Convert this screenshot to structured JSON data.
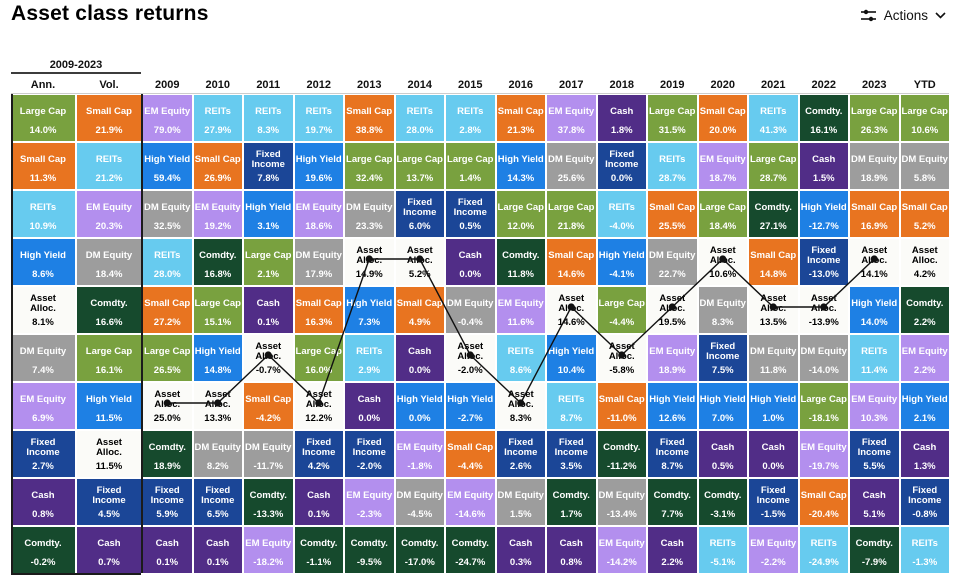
{
  "header": {
    "title": "Asset class returns",
    "actions_label": "Actions"
  },
  "asset_colors": {
    "Large Cap": "#79a13f",
    "Small Cap": "#e87420",
    "REITs": "#67cbef",
    "High Yield": "#1e80e4",
    "Asset Alloc.": "#fbfbf8",
    "DM Equity": "#9d9d9d",
    "EM Equity": "#b38fee",
    "Fixed Income": "#1b4697",
    "Cash": "#512d87",
    "Comdty.": "#164a2d"
  },
  "line_overlay": {
    "tracked_asset": "Asset Alloc.",
    "color": "#111111",
    "tracked_columns": [
      "2009",
      "2010",
      "2011",
      "2012",
      "2013",
      "2014",
      "2015",
      "2016",
      "2017",
      "2018",
      "2019",
      "2020",
      "2021",
      "2022",
      "2023"
    ]
  },
  "chart_data": {
    "type": "table",
    "title": "Asset class returns",
    "group_header": "2009-2023",
    "columns": [
      {
        "label": "Ann.",
        "cells": [
          {
            "asset": "Large Cap",
            "value": "14.0%"
          },
          {
            "asset": "Small Cap",
            "value": "11.3%"
          },
          {
            "asset": "REITs",
            "value": "10.9%"
          },
          {
            "asset": "High Yield",
            "value": "8.6%"
          },
          {
            "asset": "Asset Alloc.",
            "value": "8.1%"
          },
          {
            "asset": "DM Equity",
            "value": "7.4%"
          },
          {
            "asset": "EM Equity",
            "value": "6.9%"
          },
          {
            "asset": "Fixed Income",
            "value": "2.7%"
          },
          {
            "asset": "Cash",
            "value": "0.8%"
          },
          {
            "asset": "Comdty.",
            "value": "-0.2%"
          }
        ]
      },
      {
        "label": "Vol.",
        "cells": [
          {
            "asset": "Small Cap",
            "value": "21.9%"
          },
          {
            "asset": "REITs",
            "value": "21.2%"
          },
          {
            "asset": "EM Equity",
            "value": "20.3%"
          },
          {
            "asset": "DM Equity",
            "value": "18.4%"
          },
          {
            "asset": "Comdty.",
            "value": "16.6%"
          },
          {
            "asset": "Large Cap",
            "value": "16.1%"
          },
          {
            "asset": "High Yield",
            "value": "11.5%"
          },
          {
            "asset": "Asset Alloc.",
            "value": "11.5%"
          },
          {
            "asset": "Fixed Income",
            "value": "4.5%"
          },
          {
            "asset": "Cash",
            "value": "0.7%"
          }
        ]
      },
      {
        "label": "2009",
        "cells": [
          {
            "asset": "EM Equity",
            "value": "79.0%"
          },
          {
            "asset": "High Yield",
            "value": "59.4%"
          },
          {
            "asset": "DM Equity",
            "value": "32.5%"
          },
          {
            "asset": "REITs",
            "value": "28.0%"
          },
          {
            "asset": "Small Cap",
            "value": "27.2%"
          },
          {
            "asset": "Large Cap",
            "value": "26.5%"
          },
          {
            "asset": "Asset Alloc.",
            "value": "25.0%"
          },
          {
            "asset": "Comdty.",
            "value": "18.9%"
          },
          {
            "asset": "Fixed Income",
            "value": "5.9%"
          },
          {
            "asset": "Cash",
            "value": "0.1%"
          }
        ]
      },
      {
        "label": "2010",
        "cells": [
          {
            "asset": "REITs",
            "value": "27.9%"
          },
          {
            "asset": "Small Cap",
            "value": "26.9%"
          },
          {
            "asset": "EM Equity",
            "value": "19.2%"
          },
          {
            "asset": "Comdty.",
            "value": "16.8%"
          },
          {
            "asset": "Large Cap",
            "value": "15.1%"
          },
          {
            "asset": "High Yield",
            "value": "14.8%"
          },
          {
            "asset": "Asset Alloc.",
            "value": "13.3%"
          },
          {
            "asset": "DM Equity",
            "value": "8.2%"
          },
          {
            "asset": "Fixed Income",
            "value": "6.5%"
          },
          {
            "asset": "Cash",
            "value": "0.1%"
          }
        ]
      },
      {
        "label": "2011",
        "cells": [
          {
            "asset": "REITs",
            "value": "8.3%"
          },
          {
            "asset": "Fixed Income",
            "value": "7.8%"
          },
          {
            "asset": "High Yield",
            "value": "3.1%"
          },
          {
            "asset": "Large Cap",
            "value": "2.1%"
          },
          {
            "asset": "Cash",
            "value": "0.1%"
          },
          {
            "asset": "Asset Alloc.",
            "value": "-0.7%"
          },
          {
            "asset": "Small Cap",
            "value": "-4.2%"
          },
          {
            "asset": "DM Equity",
            "value": "-11.7%"
          },
          {
            "asset": "Comdty.",
            "value": "-13.3%"
          },
          {
            "asset": "EM Equity",
            "value": "-18.2%"
          }
        ]
      },
      {
        "label": "2012",
        "cells": [
          {
            "asset": "REITs",
            "value": "19.7%"
          },
          {
            "asset": "High Yield",
            "value": "19.6%"
          },
          {
            "asset": "EM Equity",
            "value": "18.6%"
          },
          {
            "asset": "DM Equity",
            "value": "17.9%"
          },
          {
            "asset": "Small Cap",
            "value": "16.3%"
          },
          {
            "asset": "Large Cap",
            "value": "16.0%"
          },
          {
            "asset": "Asset Alloc.",
            "value": "12.2%"
          },
          {
            "asset": "Fixed Income",
            "value": "4.2%"
          },
          {
            "asset": "Cash",
            "value": "0.1%"
          },
          {
            "asset": "Comdty.",
            "value": "-1.1%"
          }
        ]
      },
      {
        "label": "2013",
        "cells": [
          {
            "asset": "Small Cap",
            "value": "38.8%"
          },
          {
            "asset": "Large Cap",
            "value": "32.4%"
          },
          {
            "asset": "DM Equity",
            "value": "23.3%"
          },
          {
            "asset": "Asset Alloc.",
            "value": "14.9%"
          },
          {
            "asset": "High Yield",
            "value": "7.3%"
          },
          {
            "asset": "REITs",
            "value": "2.9%"
          },
          {
            "asset": "Cash",
            "value": "0.0%"
          },
          {
            "asset": "Fixed Income",
            "value": "-2.0%"
          },
          {
            "asset": "EM Equity",
            "value": "-2.3%"
          },
          {
            "asset": "Comdty.",
            "value": "-9.5%"
          }
        ]
      },
      {
        "label": "2014",
        "cells": [
          {
            "asset": "REITs",
            "value": "28.0%"
          },
          {
            "asset": "Large Cap",
            "value": "13.7%"
          },
          {
            "asset": "Fixed Income",
            "value": "6.0%"
          },
          {
            "asset": "Asset Alloc.",
            "value": "5.2%"
          },
          {
            "asset": "Small Cap",
            "value": "4.9%"
          },
          {
            "asset": "Cash",
            "value": "0.0%"
          },
          {
            "asset": "High Yield",
            "value": "0.0%"
          },
          {
            "asset": "EM Equity",
            "value": "-1.8%"
          },
          {
            "asset": "DM Equity",
            "value": "-4.5%"
          },
          {
            "asset": "Comdty.",
            "value": "-17.0%"
          }
        ]
      },
      {
        "label": "2015",
        "cells": [
          {
            "asset": "REITs",
            "value": "2.8%"
          },
          {
            "asset": "Large Cap",
            "value": "1.4%"
          },
          {
            "asset": "Fixed Income",
            "value": "0.5%"
          },
          {
            "asset": "Cash",
            "value": "0.0%"
          },
          {
            "asset": "DM Equity",
            "value": "-0.4%"
          },
          {
            "asset": "Asset Alloc.",
            "value": "-2.0%"
          },
          {
            "asset": "High Yield",
            "value": "-2.7%"
          },
          {
            "asset": "Small Cap",
            "value": "-4.4%"
          },
          {
            "asset": "EM Equity",
            "value": "-14.6%"
          },
          {
            "asset": "Comdty.",
            "value": "-24.7%"
          }
        ]
      },
      {
        "label": "2016",
        "cells": [
          {
            "asset": "Small Cap",
            "value": "21.3%"
          },
          {
            "asset": "High Yield",
            "value": "14.3%"
          },
          {
            "asset": "Large Cap",
            "value": "12.0%"
          },
          {
            "asset": "Comdty.",
            "value": "11.8%"
          },
          {
            "asset": "EM Equity",
            "value": "11.6%"
          },
          {
            "asset": "REITs",
            "value": "8.6%"
          },
          {
            "asset": "Asset Alloc.",
            "value": "8.3%"
          },
          {
            "asset": "Fixed Income",
            "value": "2.6%"
          },
          {
            "asset": "DM Equity",
            "value": "1.5%"
          },
          {
            "asset": "Cash",
            "value": "0.3%"
          }
        ]
      },
      {
        "label": "2017",
        "cells": [
          {
            "asset": "EM Equity",
            "value": "37.8%"
          },
          {
            "asset": "DM Equity",
            "value": "25.6%"
          },
          {
            "asset": "Large Cap",
            "value": "21.8%"
          },
          {
            "asset": "Small Cap",
            "value": "14.6%"
          },
          {
            "asset": "Asset Alloc.",
            "value": "14.6%"
          },
          {
            "asset": "High Yield",
            "value": "10.4%"
          },
          {
            "asset": "REITs",
            "value": "8.7%"
          },
          {
            "asset": "Fixed Income",
            "value": "3.5%"
          },
          {
            "asset": "Comdty.",
            "value": "1.7%"
          },
          {
            "asset": "Cash",
            "value": "0.8%"
          }
        ]
      },
      {
        "label": "2018",
        "cells": [
          {
            "asset": "Cash",
            "value": "1.8%"
          },
          {
            "asset": "Fixed Income",
            "value": "0.0%"
          },
          {
            "asset": "REITs",
            "value": "-4.0%"
          },
          {
            "asset": "High Yield",
            "value": "-4.1%"
          },
          {
            "asset": "Large Cap",
            "value": "-4.4%"
          },
          {
            "asset": "Asset Alloc.",
            "value": "-5.8%"
          },
          {
            "asset": "Small Cap",
            "value": "-11.0%"
          },
          {
            "asset": "Comdty.",
            "value": "-11.2%"
          },
          {
            "asset": "DM Equity",
            "value": "-13.4%"
          },
          {
            "asset": "EM Equity",
            "value": "-14.2%"
          }
        ]
      },
      {
        "label": "2019",
        "cells": [
          {
            "asset": "Large Cap",
            "value": "31.5%"
          },
          {
            "asset": "REITs",
            "value": "28.7%"
          },
          {
            "asset": "Small Cap",
            "value": "25.5%"
          },
          {
            "asset": "DM Equity",
            "value": "22.7%"
          },
          {
            "asset": "Asset Alloc.",
            "value": "19.5%"
          },
          {
            "asset": "EM Equity",
            "value": "18.9%"
          },
          {
            "asset": "High Yield",
            "value": "12.6%"
          },
          {
            "asset": "Fixed Income",
            "value": "8.7%"
          },
          {
            "asset": "Comdty.",
            "value": "7.7%"
          },
          {
            "asset": "Cash",
            "value": "2.2%"
          }
        ]
      },
      {
        "label": "2020",
        "cells": [
          {
            "asset": "Small Cap",
            "value": "20.0%"
          },
          {
            "asset": "EM Equity",
            "value": "18.7%"
          },
          {
            "asset": "Large Cap",
            "value": "18.4%"
          },
          {
            "asset": "Asset Alloc.",
            "value": "10.6%"
          },
          {
            "asset": "DM Equity",
            "value": "8.3%"
          },
          {
            "asset": "Fixed Income",
            "value": "7.5%"
          },
          {
            "asset": "High Yield",
            "value": "7.0%"
          },
          {
            "asset": "Cash",
            "value": "0.5%"
          },
          {
            "asset": "Comdty.",
            "value": "-3.1%"
          },
          {
            "asset": "REITs",
            "value": "-5.1%"
          }
        ]
      },
      {
        "label": "2021",
        "cells": [
          {
            "asset": "REITs",
            "value": "41.3%"
          },
          {
            "asset": "Large Cap",
            "value": "28.7%"
          },
          {
            "asset": "Comdty.",
            "value": "27.1%"
          },
          {
            "asset": "Small Cap",
            "value": "14.8%"
          },
          {
            "asset": "Asset Alloc.",
            "value": "13.5%"
          },
          {
            "asset": "DM Equity",
            "value": "11.8%"
          },
          {
            "asset": "High Yield",
            "value": "1.0%"
          },
          {
            "asset": "Cash",
            "value": "0.0%"
          },
          {
            "asset": "Fixed Income",
            "value": "-1.5%"
          },
          {
            "asset": "EM Equity",
            "value": "-2.2%"
          }
        ]
      },
      {
        "label": "2022",
        "cells": [
          {
            "asset": "Comdty.",
            "value": "16.1%"
          },
          {
            "asset": "Cash",
            "value": "1.5%"
          },
          {
            "asset": "High Yield",
            "value": "-12.7%"
          },
          {
            "asset": "Fixed Income",
            "value": "-13.0%"
          },
          {
            "asset": "Asset Alloc.",
            "value": "-13.9%"
          },
          {
            "asset": "DM Equity",
            "value": "-14.0%"
          },
          {
            "asset": "Large Cap",
            "value": "-18.1%"
          },
          {
            "asset": "EM Equity",
            "value": "-19.7%"
          },
          {
            "asset": "Small Cap",
            "value": "-20.4%"
          },
          {
            "asset": "REITs",
            "value": "-24.9%"
          }
        ]
      },
      {
        "label": "2023",
        "cells": [
          {
            "asset": "Large Cap",
            "value": "26.3%"
          },
          {
            "asset": "DM Equity",
            "value": "18.9%"
          },
          {
            "asset": "Small Cap",
            "value": "16.9%"
          },
          {
            "asset": "Asset Alloc.",
            "value": "14.1%"
          },
          {
            "asset": "High Yield",
            "value": "14.0%"
          },
          {
            "asset": "REITs",
            "value": "11.4%"
          },
          {
            "asset": "EM Equity",
            "value": "10.3%"
          },
          {
            "asset": "Fixed Income",
            "value": "5.5%"
          },
          {
            "asset": "Cash",
            "value": "5.1%"
          },
          {
            "asset": "Comdty.",
            "value": "-7.9%"
          }
        ]
      },
      {
        "label": "YTD",
        "cells": [
          {
            "asset": "Large Cap",
            "value": "10.6%"
          },
          {
            "asset": "DM Equity",
            "value": "5.8%"
          },
          {
            "asset": "Small Cap",
            "value": "5.2%"
          },
          {
            "asset": "Asset Alloc.",
            "value": "4.2%"
          },
          {
            "asset": "Comdty.",
            "value": "2.2%"
          },
          {
            "asset": "EM Equity",
            "value": "2.2%"
          },
          {
            "asset": "High Yield",
            "value": "2.1%"
          },
          {
            "asset": "Cash",
            "value": "1.3%"
          },
          {
            "asset": "Fixed Income",
            "value": "-0.8%"
          },
          {
            "asset": "REITs",
            "value": "-1.3%"
          }
        ]
      }
    ]
  }
}
